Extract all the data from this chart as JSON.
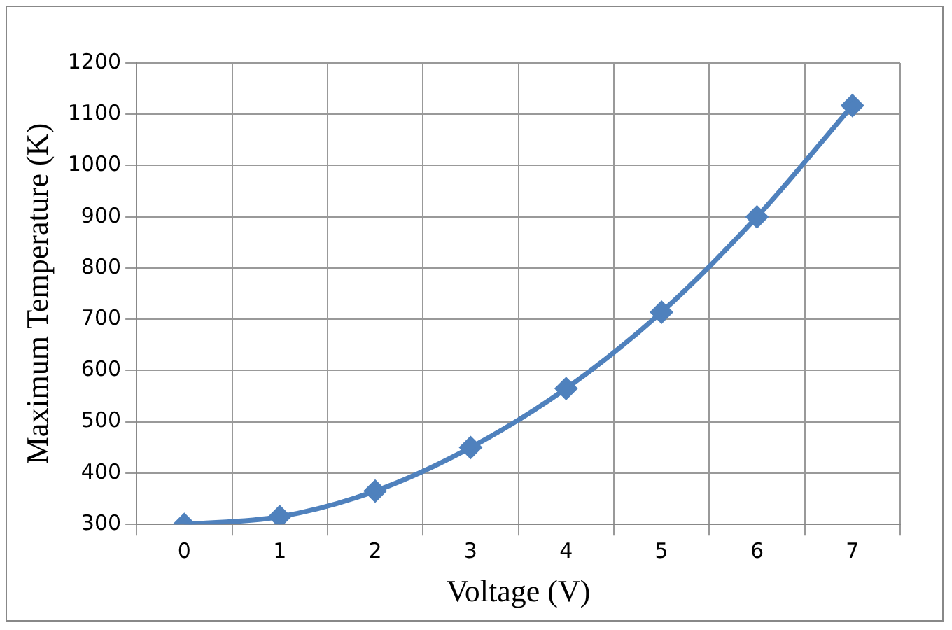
{
  "chart_data": {
    "type": "line",
    "xlabel": "Voltage (V)",
    "ylabel": "Maximum Temperature (K)",
    "categories": [
      "0",
      "1",
      "2",
      "3",
      "4",
      "5",
      "6",
      "7"
    ],
    "series": [
      {
        "color": "#4f81bd",
        "values": [
          300,
          315,
          365,
          450,
          565,
          714,
          900,
          1117
        ]
      }
    ],
    "ylim": [
      300,
      1200
    ],
    "yticks": [
      300,
      400,
      500,
      600,
      700,
      800,
      900,
      1000,
      1100,
      1200
    ],
    "grid": true,
    "legend": false,
    "marker": "diamond",
    "line_style": "solid"
  }
}
